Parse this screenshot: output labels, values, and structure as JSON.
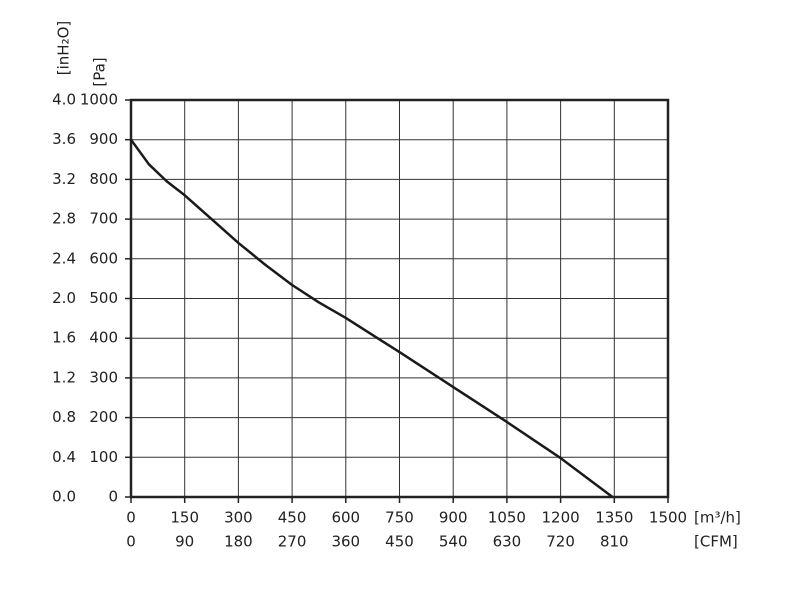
{
  "chart_data": {
    "type": "line",
    "x": [
      0,
      50,
      100,
      150,
      225,
      300,
      375,
      450,
      525,
      600,
      750,
      900,
      1050,
      1200,
      1345
    ],
    "values": [
      900,
      838,
      795,
      760,
      700,
      640,
      585,
      534,
      490,
      451,
      365,
      277,
      189,
      98,
      0
    ],
    "color": "#1a1a1a",
    "xlabel": "[m³/h]",
    "x2label": "[CFM]",
    "ylabel": "[Pa]",
    "y2label": "[inH₂O]",
    "xlim": [
      0,
      1500
    ],
    "xticks": [
      0,
      150,
      300,
      450,
      600,
      750,
      900,
      1050,
      1200,
      1350,
      1500
    ],
    "x2lim": [
      0,
      900
    ],
    "x2ticks": [
      0,
      90,
      180,
      270,
      360,
      450,
      540,
      630,
      720,
      810
    ],
    "ylim": [
      0,
      1000
    ],
    "yticks": [
      0,
      100,
      200,
      300,
      400,
      500,
      600,
      700,
      800,
      900,
      1000
    ],
    "y2lim": [
      0,
      4
    ],
    "y2ticks": [
      {
        "value": 0,
        "label": "0.0"
      },
      {
        "value": 0.4,
        "label": "0.4"
      },
      {
        "value": 0.8,
        "label": "0.8"
      },
      {
        "value": 1.2,
        "label": "1.2"
      },
      {
        "value": 1.6,
        "label": "1.6"
      },
      {
        "value": 2,
        "label": "2.0"
      },
      {
        "value": 2.4,
        "label": "2.4"
      },
      {
        "value": 2.8,
        "label": "2.8"
      },
      {
        "value": 3.2,
        "label": "3.2"
      },
      {
        "value": 3.6,
        "label": "3.6"
      },
      {
        "value": 4,
        "label": "4.0"
      }
    ],
    "grid": true
  }
}
